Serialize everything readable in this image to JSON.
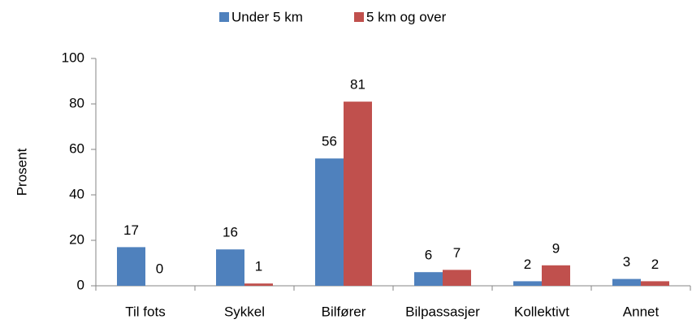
{
  "chart_data": {
    "type": "bar",
    "y_label": "Prosent",
    "categories": [
      "Til fots",
      "Sykkel",
      "Bilfører",
      "Bilpassasjer",
      "Kollektivt",
      "Annet"
    ],
    "series": [
      {
        "name": "Under 5 km",
        "color": "#4f81bd",
        "values": [
          17,
          16,
          56,
          6,
          2,
          3
        ]
      },
      {
        "name": "5 km og over",
        "color": "#c0504d",
        "values": [
          0,
          1,
          81,
          7,
          9,
          2
        ]
      }
    ],
    "ylim": [
      0,
      100
    ],
    "yticks": [
      0,
      20,
      40,
      60,
      80,
      100
    ],
    "grid": false,
    "legend": "top"
  }
}
